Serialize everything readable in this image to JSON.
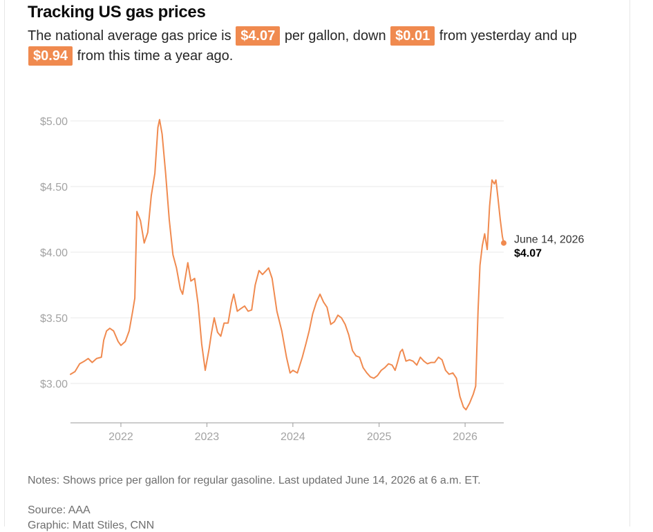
{
  "header": {
    "title": "Tracking US gas prices",
    "sub_pre": "The national average gas price is",
    "sub_mid1": "per gallon, down",
    "sub_mid2": "from yesterday and up",
    "sub_post": "from this time a year ago.",
    "badge_price": "$4.07",
    "badge_down": "$0.01",
    "badge_up": "$0.94"
  },
  "colors": {
    "accent": "#f08a4f",
    "line": "#f08a4f",
    "grid": "#e8e8e8",
    "tick_text": "#a3a3a3"
  },
  "footer": {
    "notes": "Notes: Shows price per gallon for regular gasoline. Last updated June 14, 2026 at 6 a.m. ET.",
    "source": "Source: AAA",
    "graphic": "Graphic: Matt Stiles, CNN"
  },
  "chart_data": {
    "type": "line",
    "title": "",
    "xlabel": "",
    "ylabel": "",
    "ylim": [
      2.7,
      5.0
    ],
    "xlim": [
      "2021-06-01",
      "2026-06-14"
    ],
    "grid": true,
    "y_ticks": [
      3.0,
      3.5,
      4.0,
      4.5,
      5.0
    ],
    "y_tick_labels": [
      "$3.00",
      "$3.50",
      "$4.00",
      "$4.50",
      "$5.00"
    ],
    "x_ticks": [
      "2022-01-01",
      "2023-01-01",
      "2024-01-01",
      "2025-01-01",
      "2026-01-01"
    ],
    "x_tick_labels": [
      "2022",
      "2023",
      "2024",
      "2025",
      "2026"
    ],
    "annotation": {
      "date": "2026-06-14",
      "label": "June 14, 2026",
      "value": 4.07,
      "value_label": "$4.07"
    },
    "series": [
      {
        "name": "",
        "points": [
          [
            "2021-06-01",
            3.07
          ],
          [
            "2021-06-20",
            3.09
          ],
          [
            "2021-07-10",
            3.15
          ],
          [
            "2021-07-30",
            3.17
          ],
          [
            "2021-08-15",
            3.19
          ],
          [
            "2021-09-01",
            3.16
          ],
          [
            "2021-09-20",
            3.19
          ],
          [
            "2021-10-10",
            3.2
          ],
          [
            "2021-10-20",
            3.33
          ],
          [
            "2021-11-01",
            3.4
          ],
          [
            "2021-11-15",
            3.42
          ],
          [
            "2021-12-01",
            3.4
          ],
          [
            "2021-12-20",
            3.32
          ],
          [
            "2022-01-01",
            3.29
          ],
          [
            "2022-01-20",
            3.32
          ],
          [
            "2022-02-05",
            3.4
          ],
          [
            "2022-02-20",
            3.55
          ],
          [
            "2022-03-01",
            3.65
          ],
          [
            "2022-03-10",
            4.31
          ],
          [
            "2022-03-25",
            4.24
          ],
          [
            "2022-04-10",
            4.07
          ],
          [
            "2022-04-25",
            4.15
          ],
          [
            "2022-05-10",
            4.43
          ],
          [
            "2022-05-25",
            4.6
          ],
          [
            "2022-06-07",
            4.95
          ],
          [
            "2022-06-14",
            5.01
          ],
          [
            "2022-06-25",
            4.9
          ],
          [
            "2022-07-10",
            4.6
          ],
          [
            "2022-07-25",
            4.25
          ],
          [
            "2022-08-10",
            3.98
          ],
          [
            "2022-08-25",
            3.88
          ],
          [
            "2022-09-10",
            3.72
          ],
          [
            "2022-09-20",
            3.68
          ],
          [
            "2022-10-01",
            3.8
          ],
          [
            "2022-10-12",
            3.92
          ],
          [
            "2022-10-25",
            3.78
          ],
          [
            "2022-11-10",
            3.8
          ],
          [
            "2022-11-25",
            3.6
          ],
          [
            "2022-12-10",
            3.3
          ],
          [
            "2022-12-25",
            3.1
          ],
          [
            "2023-01-10",
            3.26
          ],
          [
            "2023-01-20",
            3.38
          ],
          [
            "2023-02-01",
            3.5
          ],
          [
            "2023-02-15",
            3.39
          ],
          [
            "2023-03-01",
            3.36
          ],
          [
            "2023-03-15",
            3.46
          ],
          [
            "2023-04-01",
            3.46
          ],
          [
            "2023-04-15",
            3.61
          ],
          [
            "2023-04-25",
            3.68
          ],
          [
            "2023-05-10",
            3.55
          ],
          [
            "2023-05-25",
            3.57
          ],
          [
            "2023-06-10",
            3.59
          ],
          [
            "2023-06-25",
            3.55
          ],
          [
            "2023-07-10",
            3.56
          ],
          [
            "2023-07-25",
            3.75
          ],
          [
            "2023-08-10",
            3.86
          ],
          [
            "2023-08-25",
            3.83
          ],
          [
            "2023-09-10",
            3.86
          ],
          [
            "2023-09-20",
            3.88
          ],
          [
            "2023-10-05",
            3.8
          ],
          [
            "2023-10-25",
            3.55
          ],
          [
            "2023-11-15",
            3.4
          ],
          [
            "2023-12-05",
            3.2
          ],
          [
            "2023-12-20",
            3.08
          ],
          [
            "2024-01-01",
            3.1
          ],
          [
            "2024-01-20",
            3.08
          ],
          [
            "2024-02-10",
            3.2
          ],
          [
            "2024-02-25",
            3.3
          ],
          [
            "2024-03-10",
            3.4
          ],
          [
            "2024-03-25",
            3.53
          ],
          [
            "2024-04-10",
            3.62
          ],
          [
            "2024-04-25",
            3.68
          ],
          [
            "2024-05-10",
            3.62
          ],
          [
            "2024-05-25",
            3.58
          ],
          [
            "2024-06-10",
            3.45
          ],
          [
            "2024-06-25",
            3.47
          ],
          [
            "2024-07-10",
            3.52
          ],
          [
            "2024-07-25",
            3.5
          ],
          [
            "2024-08-10",
            3.45
          ],
          [
            "2024-08-25",
            3.37
          ],
          [
            "2024-09-10",
            3.25
          ],
          [
            "2024-09-25",
            3.21
          ],
          [
            "2024-10-10",
            3.2
          ],
          [
            "2024-10-25",
            3.12
          ],
          [
            "2024-11-10",
            3.08
          ],
          [
            "2024-11-25",
            3.05
          ],
          [
            "2024-12-10",
            3.04
          ],
          [
            "2024-12-25",
            3.06
          ],
          [
            "2025-01-10",
            3.1
          ],
          [
            "2025-01-25",
            3.12
          ],
          [
            "2025-02-10",
            3.15
          ],
          [
            "2025-02-25",
            3.14
          ],
          [
            "2025-03-10",
            3.1
          ],
          [
            "2025-03-20",
            3.16
          ],
          [
            "2025-04-01",
            3.24
          ],
          [
            "2025-04-10",
            3.26
          ],
          [
            "2025-04-25",
            3.17
          ],
          [
            "2025-05-10",
            3.18
          ],
          [
            "2025-05-25",
            3.17
          ],
          [
            "2025-06-10",
            3.14
          ],
          [
            "2025-06-25",
            3.2
          ],
          [
            "2025-07-10",
            3.17
          ],
          [
            "2025-07-25",
            3.15
          ],
          [
            "2025-08-10",
            3.16
          ],
          [
            "2025-08-25",
            3.16
          ],
          [
            "2025-09-10",
            3.2
          ],
          [
            "2025-09-25",
            3.18
          ],
          [
            "2025-10-10",
            3.1
          ],
          [
            "2025-10-25",
            3.07
          ],
          [
            "2025-11-10",
            3.08
          ],
          [
            "2025-11-25",
            3.04
          ],
          [
            "2025-12-10",
            2.9
          ],
          [
            "2025-12-25",
            2.82
          ],
          [
            "2026-01-05",
            2.8
          ],
          [
            "2026-01-20",
            2.85
          ],
          [
            "2026-02-05",
            2.92
          ],
          [
            "2026-02-15",
            2.98
          ],
          [
            "2026-02-25",
            3.55
          ],
          [
            "2026-03-05",
            3.9
          ],
          [
            "2026-03-15",
            4.05
          ],
          [
            "2026-03-25",
            4.14
          ],
          [
            "2026-04-05",
            4.02
          ],
          [
            "2026-04-15",
            4.35
          ],
          [
            "2026-04-25",
            4.55
          ],
          [
            "2026-05-05",
            4.52
          ],
          [
            "2026-05-12",
            4.55
          ],
          [
            "2026-05-20",
            4.42
          ],
          [
            "2026-05-30",
            4.25
          ],
          [
            "2026-06-08",
            4.12
          ],
          [
            "2026-06-14",
            4.07
          ]
        ]
      }
    ]
  }
}
